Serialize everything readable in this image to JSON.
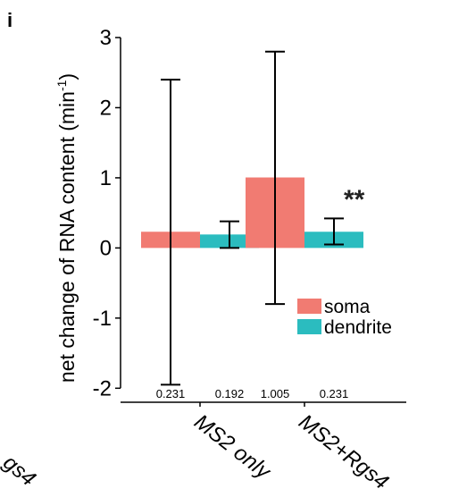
{
  "panel_letter": "i",
  "chart_data": {
    "type": "bar",
    "ylabel_main": "net change of RNA content (min",
    "ylabel_sup": "-1",
    "ylabel_end": ")",
    "ylim": [
      -2.2,
      3.0
    ],
    "yticks": [
      -2,
      -1,
      0,
      1,
      2,
      3
    ],
    "categories": [
      "MS2 only",
      "MS2+Rgs4"
    ],
    "series": [
      {
        "name": "soma",
        "color": "#f17b72",
        "values": [
          0.231,
          1.005
        ],
        "err_low": [
          -1.95,
          -0.8
        ],
        "err_high": [
          2.4,
          2.8
        ]
      },
      {
        "name": "dendrite",
        "color": "#2bbcbf",
        "values": [
          0.192,
          0.231
        ],
        "err_low": [
          0.0,
          0.05
        ],
        "err_high": [
          0.38,
          0.42
        ]
      }
    ],
    "value_labels": [
      [
        "0.231",
        "1.005"
      ],
      [
        "0.192",
        "0.231"
      ]
    ],
    "annotation": "**",
    "legend_position": "bottom-right",
    "grid": false
  },
  "cut_off_label": "gs4"
}
